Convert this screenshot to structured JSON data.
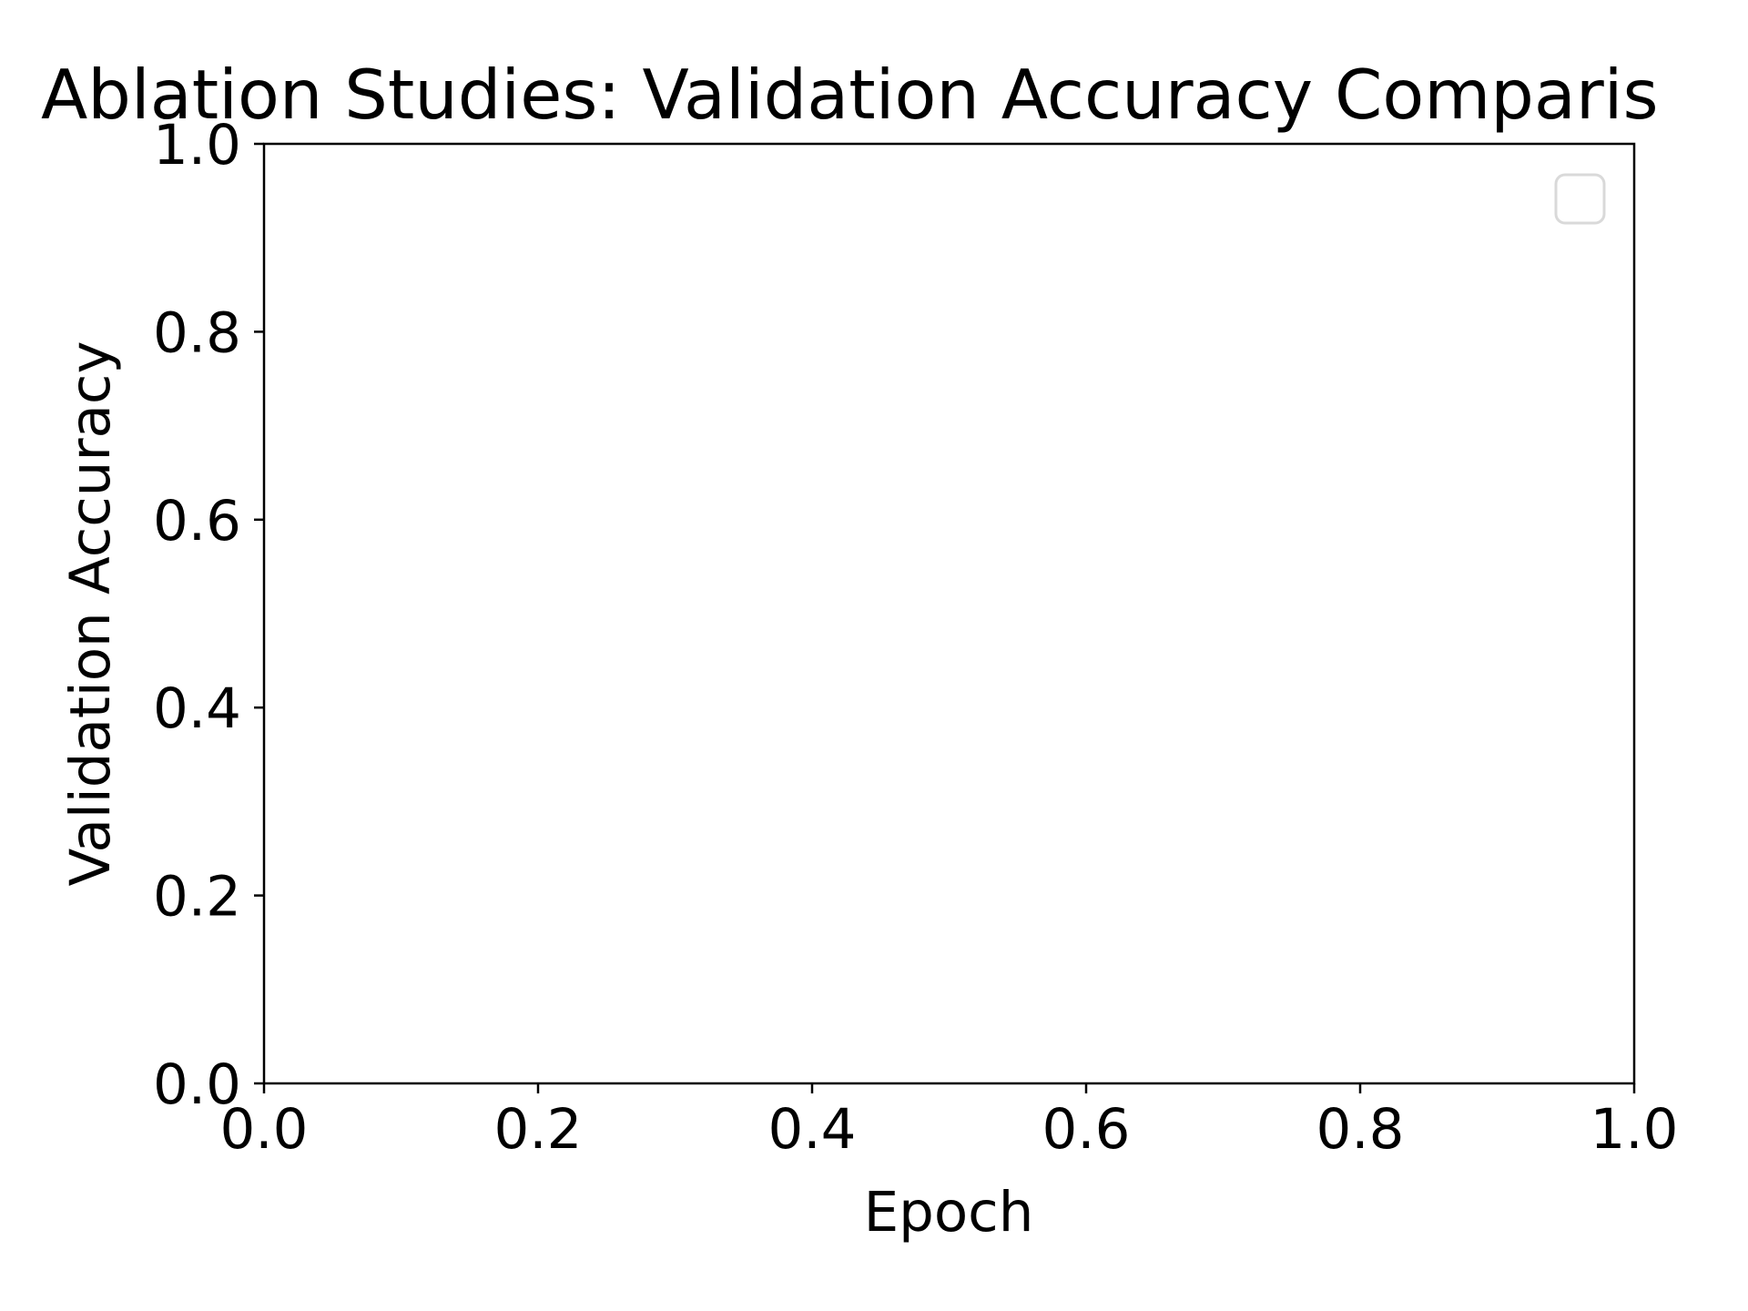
{
  "chart_data": {
    "type": "line",
    "title": "Ablation Studies: Validation Accuracy Comparis",
    "xlabel": "Epoch",
    "ylabel": "Validation Accuracy",
    "xlim": [
      0.0,
      1.0
    ],
    "ylim": [
      0.0,
      1.0
    ],
    "xticks": [
      "0.0",
      "0.2",
      "0.4",
      "0.6",
      "0.8",
      "1.0"
    ],
    "yticks": [
      "0.0",
      "0.2",
      "0.4",
      "0.6",
      "0.8",
      "1.0"
    ],
    "series": [],
    "grid": false,
    "legend": {
      "placement": "upper-right",
      "entries": []
    }
  },
  "colors": {
    "axes": "#000000",
    "background": "#ffffff",
    "legend_border": "#d9d9d9"
  }
}
